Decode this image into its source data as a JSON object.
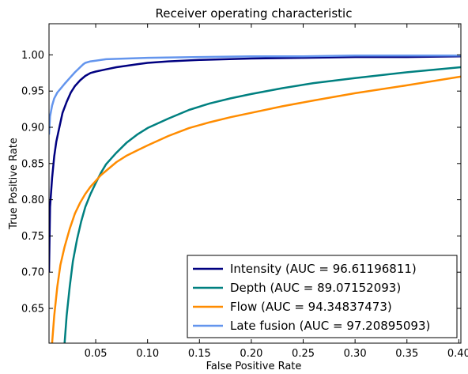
{
  "chart_data": {
    "type": "line",
    "title": "Receiver operating characteristic",
    "xlabel": "False Positive Rate",
    "ylabel": "True Positive Rate",
    "xlim": [
      0.005,
      0.402
    ],
    "ylim": [
      0.602,
      1.043
    ],
    "xticks": [
      0.05,
      0.1,
      0.15,
      0.2,
      0.25,
      0.3,
      0.35,
      0.4
    ],
    "xtick_labels": [
      "0.05",
      "0.10",
      "0.15",
      "0.20",
      "0.25",
      "0.30",
      "0.35",
      "0.40"
    ],
    "yticks": [
      0.65,
      0.7,
      0.75,
      0.8,
      0.85,
      0.9,
      0.95,
      1.0
    ],
    "ytick_labels": [
      "0.65",
      "0.70",
      "0.75",
      "0.80",
      "0.85",
      "0.90",
      "0.95",
      "1.00"
    ],
    "grid": false,
    "legend_position": "bottom-right",
    "series": [
      {
        "name": "Intensity (AUC = 96.61196811)",
        "color": "#000080",
        "x": [
          0.005,
          0.006,
          0.008,
          0.01,
          0.012,
          0.015,
          0.018,
          0.022,
          0.026,
          0.03,
          0.035,
          0.04,
          0.045,
          0.05,
          0.06,
          0.07,
          0.08,
          0.09,
          0.1,
          0.12,
          0.15,
          0.2,
          0.25,
          0.3,
          0.35,
          0.402
        ],
        "y": [
          0.7,
          0.79,
          0.83,
          0.86,
          0.88,
          0.9,
          0.92,
          0.935,
          0.948,
          0.957,
          0.965,
          0.971,
          0.975,
          0.977,
          0.98,
          0.983,
          0.985,
          0.987,
          0.989,
          0.991,
          0.993,
          0.995,
          0.996,
          0.997,
          0.997,
          0.998
        ]
      },
      {
        "name": "Depth (AUC = 89.07152093)",
        "color": "#008080",
        "x": [
          0.02,
          0.022,
          0.025,
          0.028,
          0.032,
          0.036,
          0.04,
          0.045,
          0.05,
          0.055,
          0.06,
          0.07,
          0.08,
          0.09,
          0.1,
          0.12,
          0.14,
          0.16,
          0.18,
          0.2,
          0.23,
          0.26,
          0.3,
          0.35,
          0.402
        ],
        "y": [
          0.602,
          0.64,
          0.68,
          0.715,
          0.745,
          0.77,
          0.79,
          0.808,
          0.823,
          0.837,
          0.849,
          0.865,
          0.879,
          0.89,
          0.899,
          0.912,
          0.924,
          0.933,
          0.94,
          0.946,
          0.954,
          0.961,
          0.968,
          0.976,
          0.983
        ]
      },
      {
        "name": "Flow (AUC = 94.34837473)",
        "color": "#ff8c00",
        "x": [
          0.008,
          0.01,
          0.013,
          0.016,
          0.02,
          0.025,
          0.03,
          0.035,
          0.04,
          0.045,
          0.05,
          0.055,
          0.06,
          0.07,
          0.08,
          0.09,
          0.1,
          0.12,
          0.14,
          0.16,
          0.18,
          0.2,
          0.23,
          0.26,
          0.3,
          0.35,
          0.402
        ],
        "y": [
          0.602,
          0.64,
          0.68,
          0.71,
          0.735,
          0.76,
          0.781,
          0.796,
          0.808,
          0.818,
          0.826,
          0.834,
          0.84,
          0.852,
          0.861,
          0.868,
          0.875,
          0.888,
          0.899,
          0.907,
          0.914,
          0.92,
          0.929,
          0.937,
          0.947,
          0.958,
          0.97
        ]
      },
      {
        "name": "Late fusion (AUC = 97.20895093)",
        "color": "#6495ed",
        "x": [
          0.005,
          0.006,
          0.008,
          0.01,
          0.013,
          0.016,
          0.02,
          0.025,
          0.03,
          0.035,
          0.038,
          0.04,
          0.045,
          0.05,
          0.06,
          0.08,
          0.1,
          0.15,
          0.2,
          0.25,
          0.3,
          0.35,
          0.402
        ],
        "y": [
          0.89,
          0.915,
          0.93,
          0.94,
          0.948,
          0.953,
          0.96,
          0.968,
          0.976,
          0.983,
          0.987,
          0.989,
          0.991,
          0.992,
          0.994,
          0.995,
          0.996,
          0.997,
          0.998,
          0.998,
          0.999,
          0.999,
          0.999
        ]
      }
    ]
  }
}
